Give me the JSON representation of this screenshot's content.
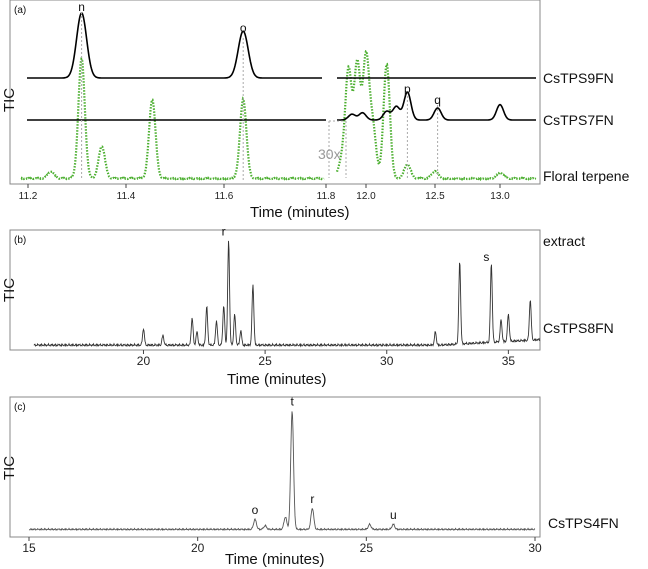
{
  "chart_data": [
    {
      "panel": "(a)",
      "type": "line",
      "ylabel": "TIC",
      "xlabel": "Time (minutes)",
      "x_ticks": [
        "11.2",
        "11.4",
        "11.6",
        "11.8",
        "12.0",
        "12.5",
        "13.0"
      ],
      "left_segment_xlim": [
        11.2,
        11.8
      ],
      "right_segment_xlim": [
        11.8,
        13.2
      ],
      "annotation": "30x",
      "series": [
        {
          "name": "CsTPS9FN",
          "color": "#000000",
          "style": "solid",
          "peaks": [
            {
              "x": 11.32,
              "height": 1.0,
              "label": "n"
            },
            {
              "x": 11.64,
              "height": 0.72,
              "label": "o"
            }
          ]
        },
        {
          "name": "CsTPS7FN",
          "color": "#000000",
          "style": "solid",
          "peaks": [
            {
              "x": 11.92,
              "height": 0.12
            },
            {
              "x": 11.98,
              "height": 0.15
            },
            {
              "x": 12.15,
              "height": 0.18
            },
            {
              "x": 12.22,
              "height": 0.28
            },
            {
              "x": 12.3,
              "height": 0.58,
              "label": "p"
            },
            {
              "x": 12.52,
              "height": 0.25,
              "label": "q"
            },
            {
              "x": 13.0,
              "height": 0.32
            }
          ]
        },
        {
          "name": "Floral terpene",
          "color": "#4caf30",
          "style": "dotted",
          "peaks": [
            {
              "x": 11.26,
              "height": 0.06
            },
            {
              "x": 11.32,
              "height": 1.0
            },
            {
              "x": 11.36,
              "height": 0.27
            },
            {
              "x": 11.46,
              "height": 0.66
            },
            {
              "x": 11.64,
              "height": 0.66
            },
            {
              "x": 11.86,
              "height": 0.14
            },
            {
              "x": 11.9,
              "height": 0.9
            },
            {
              "x": 11.95,
              "height": 0.95
            },
            {
              "x": 12.0,
              "height": 1.0
            },
            {
              "x": 12.05,
              "height": 0.42
            },
            {
              "x": 12.15,
              "height": 0.95
            },
            {
              "x": 12.3,
              "height": 0.12
            },
            {
              "x": 12.5,
              "height": 0.06
            },
            {
              "x": 13.0,
              "height": 0.05
            }
          ]
        }
      ]
    },
    {
      "panel": "(b)",
      "type": "line",
      "ylabel": "TIC",
      "xlabel": "Time (minutes)",
      "x_ticks": [
        "20",
        "25",
        "30",
        "35"
      ],
      "xlim": [
        15.5,
        36.3
      ],
      "series": [
        {
          "name": "CsTPS8FN",
          "color": "#333333",
          "style": "solid",
          "peaks": [
            {
              "x": 20.0,
              "height": 0.15
            },
            {
              "x": 20.8,
              "height": 0.09
            },
            {
              "x": 22.0,
              "height": 0.25
            },
            {
              "x": 22.2,
              "height": 0.12
            },
            {
              "x": 22.6,
              "height": 0.35
            },
            {
              "x": 23.0,
              "height": 0.22
            },
            {
              "x": 23.3,
              "height": 0.36
            },
            {
              "x": 23.5,
              "height": 0.95,
              "label": "r"
            },
            {
              "x": 23.75,
              "height": 0.28
            },
            {
              "x": 24.0,
              "height": 0.13
            },
            {
              "x": 24.5,
              "height": 0.55
            },
            {
              "x": 32.0,
              "height": 0.12
            },
            {
              "x": 33.0,
              "height": 0.75
            },
            {
              "x": 34.3,
              "height": 0.72,
              "label": "s"
            },
            {
              "x": 34.7,
              "height": 0.2
            },
            {
              "x": 35.0,
              "height": 0.25
            },
            {
              "x": 35.9,
              "height": 0.37
            }
          ]
        }
      ]
    },
    {
      "panel": "(c)",
      "type": "line",
      "ylabel": "TIC",
      "xlabel": "Time (minutes)",
      "x_ticks": [
        "15",
        "20",
        "25",
        "30"
      ],
      "xlim": [
        15,
        30
      ],
      "series": [
        {
          "name": "CsTPS4FN",
          "color": "#555555",
          "style": "solid",
          "peaks": [
            {
              "x": 21.7,
              "height": 0.08,
              "label": "o"
            },
            {
              "x": 22.0,
              "height": 0.03
            },
            {
              "x": 22.6,
              "height": 0.1
            },
            {
              "x": 22.8,
              "height": 0.95,
              "label": "t"
            },
            {
              "x": 23.4,
              "height": 0.17,
              "label": "r"
            },
            {
              "x": 25.1,
              "height": 0.04
            },
            {
              "x": 25.8,
              "height": 0.04,
              "label": "u"
            }
          ]
        }
      ]
    }
  ],
  "labels": {
    "a_panel": "(a)",
    "b_panel": "(b)",
    "c_panel": "(c)",
    "extract_word": "extract"
  }
}
